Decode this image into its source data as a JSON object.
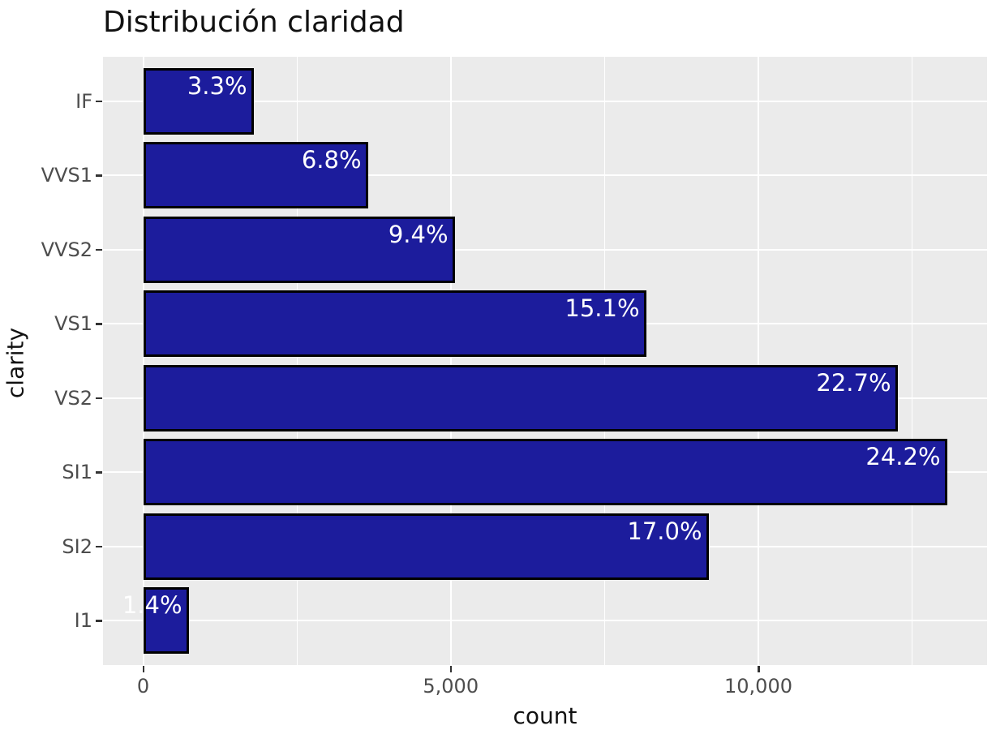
{
  "title": "Distribución claridad",
  "colors": {
    "bar_fill": "#1C1C9C",
    "bar_border": "#000000",
    "panel_background": "#EBEBEB",
    "gridline": "#FFFFFF",
    "tick_label_text": "#4D4D4D",
    "axis_title_text": "#111111",
    "title_text": "#111111",
    "bar_label_text": "#FFFFFF",
    "tick_mark": "#333333"
  },
  "chart_data": {
    "type": "bar",
    "orientation": "horizontal",
    "title": "Distribución claridad",
    "xlabel": "count",
    "ylabel": "clarity",
    "categories": [
      "IF",
      "VVS1",
      "VVS2",
      "VS1",
      "VS2",
      "SI1",
      "SI2",
      "I1"
    ],
    "values": [
      1790,
      3655,
      5066,
      8171,
      12258,
      13065,
      9194,
      741
    ],
    "bar_labels": [
      "3.3%",
      "6.8%",
      "9.4%",
      "15.1%",
      "22.7%",
      "24.2%",
      "17.0%",
      "1.4%"
    ],
    "x_major_ticks": [
      {
        "value": 0,
        "label": "0"
      },
      {
        "value": 5000,
        "label": "5,000"
      },
      {
        "value": 10000,
        "label": "10,000"
      }
    ],
    "x_minor_ticks": [
      2500,
      7500,
      12500
    ],
    "xlim": [
      -653,
      13718
    ],
    "grid": true,
    "legend": false
  }
}
